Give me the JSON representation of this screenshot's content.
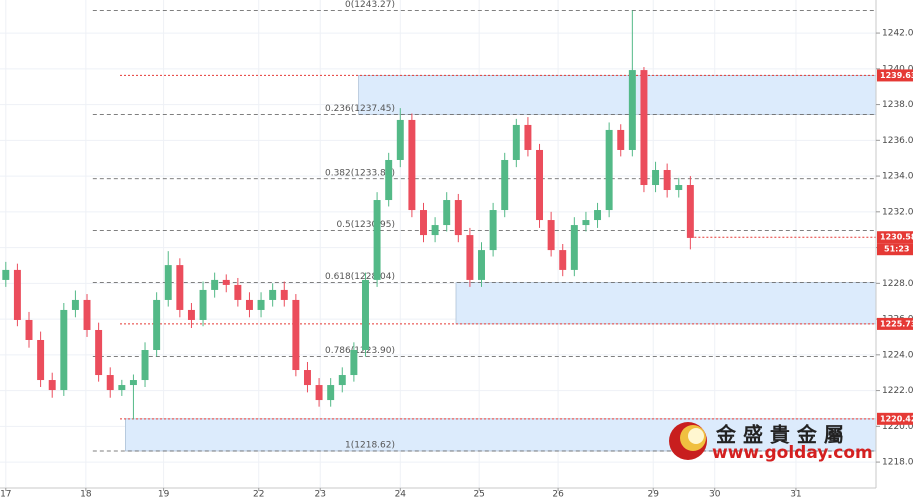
{
  "chart_data": {
    "type": "candlestick",
    "x": [
      0,
      1,
      2,
      3,
      4,
      5,
      6,
      7,
      8,
      9,
      10,
      11,
      12,
      13,
      14,
      15,
      16,
      17,
      18,
      19,
      20,
      21,
      22,
      23,
      24,
      25,
      26,
      27,
      28,
      29,
      30,
      31,
      32,
      33,
      34,
      35,
      36,
      37,
      38,
      39,
      40,
      41,
      42,
      43,
      44,
      45,
      46,
      47,
      48,
      49,
      50,
      51,
      52,
      53,
      54,
      55,
      56,
      57,
      58,
      59
    ],
    "open": [
      1228.19,
      1228.75,
      1225.95,
      1224.83,
      1222.59,
      1222.03,
      1226.51,
      1227.07,
      1225.39,
      1222.87,
      1222.03,
      1222.31,
      1222.59,
      1224.27,
      1227.07,
      1229.02,
      1226.51,
      1225.95,
      1227.63,
      1228.19,
      1227.91,
      1227.07,
      1226.51,
      1227.07,
      1227.63,
      1227.07,
      1223.15,
      1222.31,
      1221.47,
      1222.31,
      1222.87,
      1224.27,
      1228.19,
      1232.66,
      1234.9,
      1237.14,
      1232.1,
      1230.7,
      1231.26,
      1232.66,
      1230.7,
      1228.19,
      1229.86,
      1232.1,
      1234.9,
      1236.86,
      1235.46,
      1231.54,
      1229.86,
      1228.75,
      1231.26,
      1231.54,
      1232.1,
      1236.58,
      1235.46,
      1239.93,
      1233.5,
      1234.34,
      1233.22,
      1233.5
    ],
    "high": [
      1229.2,
      1229.1,
      1226.4,
      1225.3,
      1223.0,
      1226.9,
      1227.6,
      1227.4,
      1225.8,
      1223.3,
      1222.6,
      1222.9,
      1224.7,
      1227.5,
      1229.8,
      1229.4,
      1226.9,
      1228.1,
      1228.6,
      1228.5,
      1228.3,
      1227.5,
      1227.5,
      1228.0,
      1228.1,
      1227.4,
      1223.6,
      1222.7,
      1222.7,
      1223.3,
      1224.7,
      1228.6,
      1233.1,
      1235.3,
      1237.8,
      1237.5,
      1232.5,
      1231.7,
      1233.1,
      1233.0,
      1231.1,
      1230.3,
      1232.5,
      1235.3,
      1237.2,
      1237.3,
      1235.8,
      1232.0,
      1230.2,
      1231.7,
      1232.0,
      1232.5,
      1237.0,
      1236.9,
      1243.27,
      1240.1,
      1234.8,
      1234.7,
      1233.9,
      1234.0
    ],
    "low": [
      1227.8,
      1225.6,
      1224.4,
      1222.2,
      1221.6,
      1221.7,
      1226.1,
      1225.0,
      1222.5,
      1221.6,
      1221.7,
      1220.4,
      1222.2,
      1223.9,
      1226.7,
      1226.1,
      1225.5,
      1225.6,
      1227.2,
      1227.5,
      1226.7,
      1226.1,
      1226.1,
      1226.7,
      1226.7,
      1222.8,
      1221.9,
      1221.1,
      1221.1,
      1221.9,
      1222.5,
      1223.9,
      1227.8,
      1232.3,
      1234.5,
      1231.7,
      1230.3,
      1230.3,
      1230.9,
      1230.3,
      1227.8,
      1227.8,
      1229.5,
      1231.7,
      1234.5,
      1235.1,
      1231.1,
      1229.5,
      1228.4,
      1228.4,
      1230.9,
      1231.1,
      1231.7,
      1235.1,
      1235.1,
      1233.1,
      1233.1,
      1232.8,
      1232.8,
      1229.9
    ],
    "close": [
      1228.75,
      1225.95,
      1224.83,
      1222.59,
      1222.03,
      1226.51,
      1227.07,
      1225.39,
      1222.87,
      1222.03,
      1222.31,
      1222.59,
      1224.27,
      1227.07,
      1229.02,
      1226.51,
      1225.95,
      1227.63,
      1228.19,
      1227.91,
      1227.07,
      1226.51,
      1227.07,
      1227.63,
      1227.07,
      1223.15,
      1222.31,
      1221.47,
      1222.31,
      1222.87,
      1224.27,
      1228.19,
      1232.66,
      1234.9,
      1237.14,
      1232.1,
      1230.7,
      1231.26,
      1232.66,
      1230.7,
      1228.19,
      1229.86,
      1232.1,
      1234.9,
      1236.86,
      1235.46,
      1231.54,
      1229.86,
      1228.75,
      1231.26,
      1231.54,
      1232.1,
      1236.58,
      1235.46,
      1239.93,
      1233.5,
      1234.34,
      1233.22,
      1233.5,
      1230.54
    ],
    "up_color": "#53b987",
    "down_color": "#eb4d5c",
    "xlim": [
      -0.5,
      75
    ],
    "ylim": [
      1216.55,
      1243.85
    ],
    "xticks": [
      {
        "value": 0,
        "label": "17"
      },
      {
        "value": 6.9,
        "label": "18"
      },
      {
        "value": 13.6,
        "label": "19"
      },
      {
        "value": 21.8,
        "label": "22"
      },
      {
        "value": 27.1,
        "label": "23"
      },
      {
        "value": 34.0,
        "label": "24"
      },
      {
        "value": 40.8,
        "label": "25"
      },
      {
        "value": 47.6,
        "label": "26"
      },
      {
        "value": 55.8,
        "label": "29"
      },
      {
        "value": 61.1,
        "label": "30"
      },
      {
        "value": 68.1,
        "label": "31"
      }
    ],
    "yticks": [
      {
        "value": 1218,
        "label": "1218.00"
      },
      {
        "value": 1220,
        "label": "1220.00"
      },
      {
        "value": 1222,
        "label": "1222.00"
      },
      {
        "value": 1224,
        "label": "1224.00"
      },
      {
        "value": 1226,
        "label": "1226.00"
      },
      {
        "value": 1228,
        "label": "1228.00"
      },
      {
        "value": 1230,
        "label": "1230.00"
      },
      {
        "value": 1232,
        "label": "1232.00"
      },
      {
        "value": 1234,
        "label": "1234.00"
      },
      {
        "value": 1236,
        "label": "1236.00"
      },
      {
        "value": 1238,
        "label": "1238.00"
      },
      {
        "value": 1240,
        "label": "1240.00"
      },
      {
        "value": 1242,
        "label": "1242.00"
      }
    ],
    "grid": true,
    "fib_start": 7.5,
    "fib_levels": [
      {
        "value": 1243.27,
        "label": "0(1243.27)"
      },
      {
        "value": 1237.45,
        "label": "0.236(1237.45)"
      },
      {
        "value": 1233.85,
        "label": "0.382(1233.85)"
      },
      {
        "value": 1230.95,
        "label": "0.5(1230.95)"
      },
      {
        "value": 1228.04,
        "label": "0.618(1228.04)"
      },
      {
        "value": 1223.9,
        "label": "0.786(1223.90)"
      },
      {
        "value": 1218.62,
        "label": "1(1218.62)"
      }
    ],
    "zones": [
      {
        "start": 30.4,
        "from": 1237.45,
        "to": 1239.63
      },
      {
        "start": 38.8,
        "from": 1225.73,
        "to": 1228.04
      },
      {
        "start": 10.3,
        "from": 1218.62,
        "to": 1220.42
      }
    ],
    "zone_color": "#dcebfc",
    "price_lines": [
      1239.63,
      1225.73,
      1220.42,
      1230.58
    ],
    "price_line_color": "#e53935",
    "countdown": "51:23",
    "logo": {
      "name": "金 盛 貴 金 屬",
      "url": "www.golday.com"
    }
  }
}
